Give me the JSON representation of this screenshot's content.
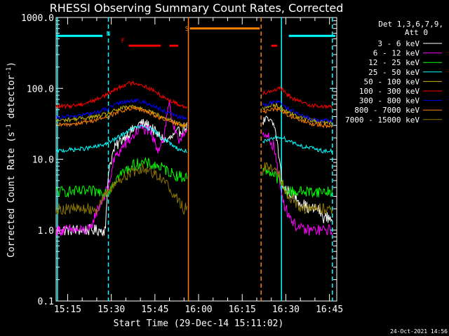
{
  "chart_data": {
    "type": "line",
    "title": "RHESSI Observing Summary Count Rates, Corrected",
    "xlabel": "Start Time (29-Dec-14 15:11:02)",
    "ylabel": "Corrected Count Rate (s",
    "ylabel_sup": "-1",
    "ylabel_mid": " detector",
    "ylabel_sup2": "-1",
    "ylabel_end": ")",
    "y_scale": "log",
    "ylim": [
      0.1,
      1000.0
    ],
    "xlim": [
      "15:11:02",
      "16:47:30"
    ],
    "x_ticks": [
      "15:15",
      "15:30",
      "15:45",
      "16:00",
      "16:15",
      "16:30",
      "16:45"
    ],
    "y_ticks": [
      "0.1",
      "1.0",
      "10.0",
      "100.0",
      "1000.0"
    ],
    "legend_header": [
      "Det 1,3,6,7,9,",
      "Att 0"
    ],
    "legend_position": "right",
    "timestamp": "24-Oct-2021 14:56",
    "series": [
      {
        "name": "3 - 6 keV",
        "color": "#ffffff",
        "x": [
          "15:11",
          "15:28",
          "15:29",
          "15:31",
          "15:34",
          "15:37",
          "15:40",
          "15:43",
          "15:46",
          "15:49",
          "15:52",
          "15:55",
          "16:24",
          "16:26",
          "16:27",
          "16:28",
          "16:29",
          "16:31",
          "16:33",
          "16:35",
          "16:38",
          "16:41",
          "16:43",
          "16:46"
        ],
        "y": [
          1.0,
          1.0,
          7.0,
          14,
          20,
          25,
          32,
          30,
          22,
          18,
          22,
          28,
          35,
          30,
          18,
          8,
          4,
          3.5,
          3,
          2.5,
          2,
          2,
          1.5,
          1.5
        ]
      },
      {
        "name": "6 - 12 keV",
        "color": "#ff00ff",
        "x": [
          "15:11",
          "15:23",
          "15:24",
          "15:29",
          "15:31",
          "15:34",
          "15:37",
          "15:40",
          "15:43",
          "15:46",
          "15:48",
          "15:50",
          "15:51",
          "15:53",
          "15:55",
          "16:24",
          "16:26",
          "16:27",
          "16:28",
          "16:30",
          "16:33",
          "16:36",
          "16:40",
          "16:43",
          "16:46"
        ],
        "y": [
          1.0,
          1.0,
          1.5,
          4,
          10,
          15,
          20,
          28,
          25,
          14,
          20,
          70,
          30,
          18,
          25,
          20,
          15,
          8,
          4,
          2,
          1.2,
          1.0,
          1.0,
          1.0,
          1.0
        ]
      },
      {
        "name": "12 - 25 keV",
        "color": "#00ff00",
        "x": [
          "15:11",
          "15:29",
          "15:31",
          "15:34",
          "15:37",
          "15:40",
          "15:43",
          "15:46",
          "15:49",
          "15:52",
          "15:55",
          "16:24",
          "16:26",
          "16:28",
          "16:30",
          "16:33",
          "16:36",
          "16:40",
          "16:44",
          "16:46"
        ],
        "y": [
          3.5,
          3.5,
          5,
          6.5,
          8,
          9,
          8.5,
          8,
          7,
          6,
          5.5,
          7,
          6,
          5,
          3.5,
          3.5,
          3.5,
          3.5,
          3.5,
          3.5
        ]
      },
      {
        "name": "25 - 50 keV",
        "color": "#00ffff",
        "x": [
          "15:11",
          "15:15",
          "15:20",
          "15:25",
          "15:29",
          "15:32",
          "15:35",
          "15:38",
          "15:41",
          "15:44",
          "15:47",
          "15:50",
          "15:53",
          "15:55",
          "16:24",
          "16:26",
          "16:28",
          "16:30",
          "16:33",
          "16:36",
          "16:40",
          "16:43",
          "16:46"
        ],
        "y": [
          13,
          13.5,
          14,
          15,
          17,
          20,
          24,
          28,
          29,
          26,
          21,
          17,
          14,
          13,
          18,
          20,
          21,
          19,
          17,
          15,
          14,
          13,
          13
        ]
      },
      {
        "name": "50 - 100 keV",
        "color": "#c8b400",
        "x": [
          "15:11",
          "15:15",
          "15:20",
          "15:25",
          "15:29",
          "15:32",
          "15:35",
          "15:38",
          "15:41",
          "15:44",
          "15:47",
          "15:50",
          "15:53",
          "15:55",
          "16:24",
          "16:26",
          "16:28",
          "16:30",
          "16:33",
          "16:36",
          "16:40",
          "16:43",
          "16:46"
        ],
        "y": [
          35,
          36,
          38,
          40,
          44,
          50,
          54,
          56,
          52,
          46,
          40,
          36,
          32,
          30,
          55,
          60,
          55,
          48,
          42,
          38,
          35,
          33,
          33
        ]
      },
      {
        "name": "100 - 300 keV",
        "color": "#ff0000",
        "x": [
          "15:11",
          "15:15",
          "15:20",
          "15:25",
          "15:29",
          "15:32",
          "15:35",
          "15:38",
          "15:41",
          "15:44",
          "15:47",
          "15:50",
          "15:53",
          "15:55",
          "16:24",
          "16:26",
          "16:28",
          "16:30",
          "16:33",
          "16:36",
          "16:40",
          "16:43",
          "16:46"
        ],
        "y": [
          55,
          56,
          60,
          70,
          85,
          100,
          115,
          120,
          110,
          95,
          80,
          68,
          60,
          55,
          90,
          95,
          100,
          85,
          70,
          62,
          57,
          55,
          55
        ]
      },
      {
        "name": "300 - 800 keV",
        "color": "#0000ff",
        "x": [
          "15:11",
          "15:15",
          "15:20",
          "15:25",
          "15:29",
          "15:32",
          "15:35",
          "15:38",
          "15:41",
          "15:44",
          "15:47",
          "15:50",
          "15:53",
          "15:55",
          "16:24",
          "16:26",
          "16:28",
          "16:30",
          "16:33",
          "16:36",
          "16:40",
          "16:43",
          "16:46"
        ],
        "y": [
          38,
          40,
          42,
          46,
          52,
          60,
          66,
          68,
          64,
          58,
          50,
          44,
          40,
          38,
          60,
          66,
          64,
          55,
          46,
          40,
          36,
          35,
          35
        ]
      },
      {
        "name": "800 - 7000 keV",
        "color": "#ff7f00",
        "x": [
          "15:11",
          "15:15",
          "15:20",
          "15:25",
          "15:29",
          "15:32",
          "15:35",
          "15:38",
          "15:41",
          "15:44",
          "15:47",
          "15:50",
          "15:53",
          "15:55",
          "16:24",
          "16:26",
          "16:28",
          "16:30",
          "16:33",
          "16:36",
          "16:40",
          "16:43",
          "16:46"
        ],
        "y": [
          30,
          31,
          33,
          36,
          40,
          46,
          50,
          52,
          48,
          44,
          38,
          34,
          31,
          30,
          48,
          52,
          50,
          44,
          38,
          34,
          31,
          30,
          30
        ]
      },
      {
        "name": "7000 - 15000 keV",
        "color": "#8b7500",
        "x": [
          "15:11",
          "15:25",
          "15:29",
          "15:31",
          "15:34",
          "15:37",
          "15:40",
          "15:43",
          "15:46",
          "15:49",
          "15:52",
          "15:55",
          "16:24",
          "16:26",
          "16:28",
          "16:30",
          "16:33",
          "16:36",
          "16:40",
          "16:44",
          "16:46"
        ],
        "y": [
          2.0,
          2.0,
          3.5,
          4.5,
          5.5,
          6.5,
          7.5,
          7.0,
          6.0,
          4.5,
          3.0,
          2.0,
          8.0,
          7.5,
          6,
          3.5,
          2.5,
          2,
          2,
          2,
          2
        ]
      }
    ],
    "annotations": [
      {
        "text": "N",
        "color": "#00ffff",
        "x": "15:29"
      },
      {
        "text": "F",
        "color": "#ff0000",
        "x": "15:34"
      },
      {
        "text": "S",
        "color": "#ff7f00",
        "x": "15:56"
      }
    ],
    "state_bars": [
      {
        "label": "N",
        "color": "#00ffff",
        "x": [
          "15:11",
          "15:27"
        ],
        "level": 550
      },
      {
        "label": "N",
        "color": "#00ffff",
        "x": [
          "16:31",
          "16:47"
        ],
        "level": 550
      },
      {
        "label": "F",
        "color": "#ff0000",
        "x": [
          "15:36",
          "15:47"
        ],
        "level": 400
      },
      {
        "label": "F",
        "color": "#ff0000",
        "x": [
          "15:50",
          "15:53"
        ],
        "level": 400
      },
      {
        "label": "F",
        "color": "#ff0000",
        "x": [
          "16:25",
          "16:27"
        ],
        "level": 400
      },
      {
        "label": "S",
        "color": "#ff7f00",
        "x": [
          "15:57",
          "16:21"
        ],
        "level": 700
      }
    ],
    "vertical_markers": [
      {
        "x": "15:11:30",
        "color": "#00ffff",
        "style": "solid"
      },
      {
        "x": "15:29:00",
        "color": "#00ffff",
        "style": "dashed"
      },
      {
        "x": "15:56:30",
        "color": "#ff7f00",
        "style": "solid"
      },
      {
        "x": "16:21:30",
        "color": "#ff7f00",
        "style": "dashed"
      },
      {
        "x": "16:28:30",
        "color": "#00ffff",
        "style": "solid"
      },
      {
        "x": "16:46:00",
        "color": "#00ffff",
        "style": "dashed"
      }
    ],
    "gaps": [
      [
        "15:56",
        "16:22"
      ]
    ]
  }
}
